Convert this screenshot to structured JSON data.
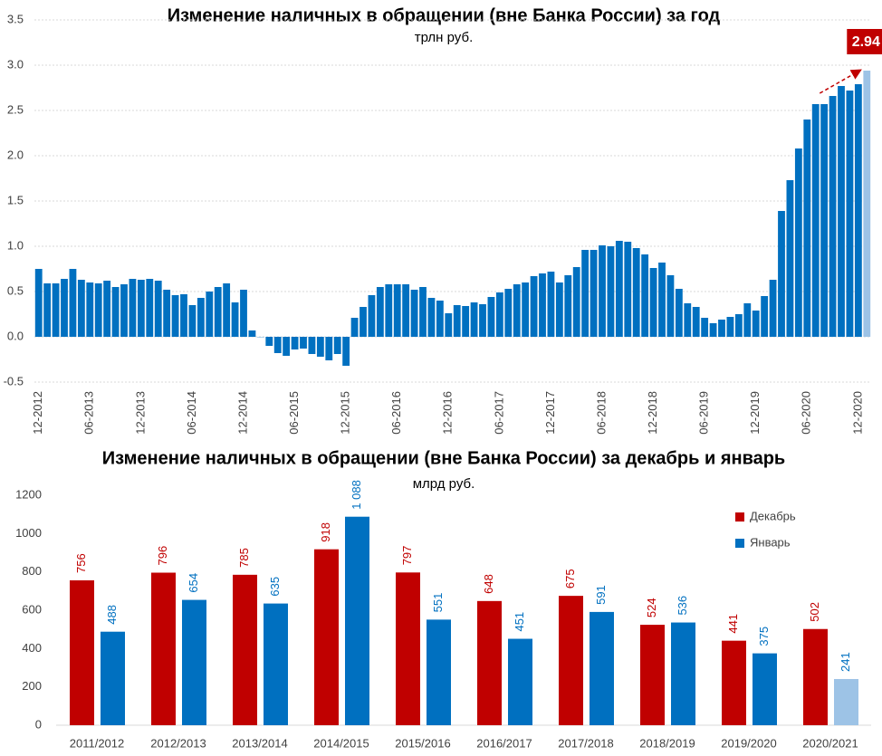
{
  "chart_data": [
    {
      "type": "bar",
      "title": "Изменение наличных в обращении (вне Банка России) за год",
      "subtitle": "трлн руб.",
      "annotation": "2.94",
      "categories": [
        "12-2012",
        null,
        null,
        null,
        null,
        null,
        "06-2013",
        null,
        null,
        null,
        null,
        null,
        "12-2013",
        null,
        null,
        null,
        null,
        null,
        "06-2014",
        null,
        null,
        null,
        null,
        null,
        "12-2014",
        null,
        null,
        null,
        null,
        null,
        "06-2015",
        null,
        null,
        null,
        null,
        null,
        "12-2015",
        null,
        null,
        null,
        null,
        null,
        "06-2016",
        null,
        null,
        null,
        null,
        null,
        "12-2016",
        null,
        null,
        null,
        null,
        null,
        "06-2017",
        null,
        null,
        null,
        null,
        null,
        "12-2017",
        null,
        null,
        null,
        null,
        null,
        "06-2018",
        null,
        null,
        null,
        null,
        null,
        "12-2018",
        null,
        null,
        null,
        null,
        null,
        "06-2019",
        null,
        null,
        null,
        null,
        null,
        "12-2019",
        null,
        null,
        null,
        null,
        null,
        "06-2020",
        null,
        null,
        null,
        null,
        null,
        "12-2020",
        null
      ],
      "values": [
        0.75,
        0.59,
        0.59,
        0.64,
        0.75,
        0.63,
        0.6,
        0.59,
        0.62,
        0.55,
        0.58,
        0.64,
        0.63,
        0.64,
        0.62,
        0.52,
        0.46,
        0.47,
        0.35,
        0.43,
        0.5,
        0.55,
        0.59,
        0.38,
        0.52,
        0.07,
        0.0,
        -0.1,
        -0.18,
        -0.21,
        -0.14,
        -0.13,
        -0.19,
        -0.22,
        -0.26,
        -0.19,
        -0.32,
        0.21,
        0.33,
        0.46,
        0.55,
        0.58,
        0.58,
        0.58,
        0.52,
        0.55,
        0.43,
        0.4,
        0.26,
        0.35,
        0.34,
        0.38,
        0.36,
        0.44,
        0.49,
        0.53,
        0.58,
        0.6,
        0.67,
        0.7,
        0.72,
        0.6,
        0.68,
        0.77,
        0.96,
        0.96,
        1.01,
        1.0,
        1.06,
        1.05,
        0.98,
        0.91,
        0.76,
        0.82,
        0.68,
        0.53,
        0.37,
        0.33,
        0.21,
        0.15,
        0.19,
        0.22,
        0.25,
        0.37,
        0.29,
        0.45,
        0.63,
        1.39,
        1.73,
        2.08,
        2.4,
        2.57,
        2.57,
        2.66,
        2.77,
        2.72,
        2.79,
        2.94
      ],
      "colors": [
        "#0070c0",
        "#0070c0",
        "#0070c0",
        "#0070c0",
        "#0070c0",
        "#0070c0",
        "#0070c0",
        "#0070c0",
        "#0070c0",
        "#0070c0",
        "#0070c0",
        "#0070c0",
        "#0070c0",
        "#0070c0",
        "#0070c0",
        "#0070c0",
        "#0070c0",
        "#0070c0",
        "#0070c0",
        "#0070c0",
        "#0070c0",
        "#0070c0",
        "#0070c0",
        "#0070c0",
        "#0070c0",
        "#0070c0",
        "#0070c0",
        "#0070c0",
        "#0070c0",
        "#0070c0",
        "#0070c0",
        "#0070c0",
        "#0070c0",
        "#0070c0",
        "#0070c0",
        "#0070c0",
        "#0070c0",
        "#0070c0",
        "#0070c0",
        "#0070c0",
        "#0070c0",
        "#0070c0",
        "#0070c0",
        "#0070c0",
        "#0070c0",
        "#0070c0",
        "#0070c0",
        "#0070c0",
        "#0070c0",
        "#0070c0",
        "#0070c0",
        "#0070c0",
        "#0070c0",
        "#0070c0",
        "#0070c0",
        "#0070c0",
        "#0070c0",
        "#0070c0",
        "#0070c0",
        "#0070c0",
        "#0070c0",
        "#0070c0",
        "#0070c0",
        "#0070c0",
        "#0070c0",
        "#0070c0",
        "#0070c0",
        "#0070c0",
        "#0070c0",
        "#0070c0",
        "#0070c0",
        "#0070c0",
        "#0070c0",
        "#0070c0",
        "#0070c0",
        "#0070c0",
        "#0070c0",
        "#0070c0",
        "#0070c0",
        "#0070c0",
        "#0070c0",
        "#0070c0",
        "#0070c0",
        "#0070c0",
        "#0070c0",
        "#0070c0",
        "#0070c0",
        "#0070c0",
        "#0070c0",
        "#0070c0",
        "#0070c0",
        "#0070c0",
        "#0070c0",
        "#0070c0",
        "#0070c0",
        "#0070c0",
        "#0070c0",
        "#9dc3e6"
      ],
      "ylim": [
        -0.5,
        3.5
      ],
      "yticks": [
        -0.5,
        {
          "value": 0,
          "label": "0.0"
        },
        0.5,
        {
          "value": 1,
          "label": "1.0"
        },
        1.5,
        {
          "value": 2,
          "label": "2.0"
        },
        2.5,
        {
          "value": 3,
          "label": "3.0"
        },
        3.5
      ],
      "grid": true
    },
    {
      "type": "grouped_bar",
      "title": "Изменение наличных в обращении (вне Банка России) за декабрь и январь",
      "subtitle": "млрд руб.",
      "categories": [
        "2011/2012",
        "2012/2013",
        "2013/2014",
        "2014/2015",
        "2015/2016",
        "2016/2017",
        "2017/2018",
        "2018/2019",
        "2019/2020",
        "2020/2021"
      ],
      "series": [
        {
          "name": "Декабрь",
          "color": "#c00000",
          "colors": [
            "#c00000",
            "#c00000",
            "#c00000",
            "#c00000",
            "#c00000",
            "#c00000",
            "#c00000",
            "#c00000",
            "#c00000",
            "#c00000"
          ],
          "values": [
            756,
            796,
            785,
            918,
            797,
            648,
            675,
            524,
            441,
            502
          ]
        },
        {
          "name": "Январь",
          "color": "#0070c0",
          "colors": [
            "#0070c0",
            "#0070c0",
            "#0070c0",
            "#0070c0",
            "#0070c0",
            "#0070c0",
            "#0070c0",
            "#0070c0",
            "#0070c0",
            "#9dc3e6"
          ],
          "values": [
            488,
            654,
            635,
            1088,
            551,
            451,
            591,
            536,
            375,
            241
          ],
          "value_labels": [
            "488",
            "654",
            "635",
            "1 088",
            "551",
            "451",
            "591",
            "536",
            "375",
            "241"
          ]
        }
      ],
      "ylim": [
        0,
        1200
      ],
      "yticks": [
        0,
        200,
        400,
        600,
        800,
        1000,
        1200
      ],
      "grid": false
    }
  ]
}
